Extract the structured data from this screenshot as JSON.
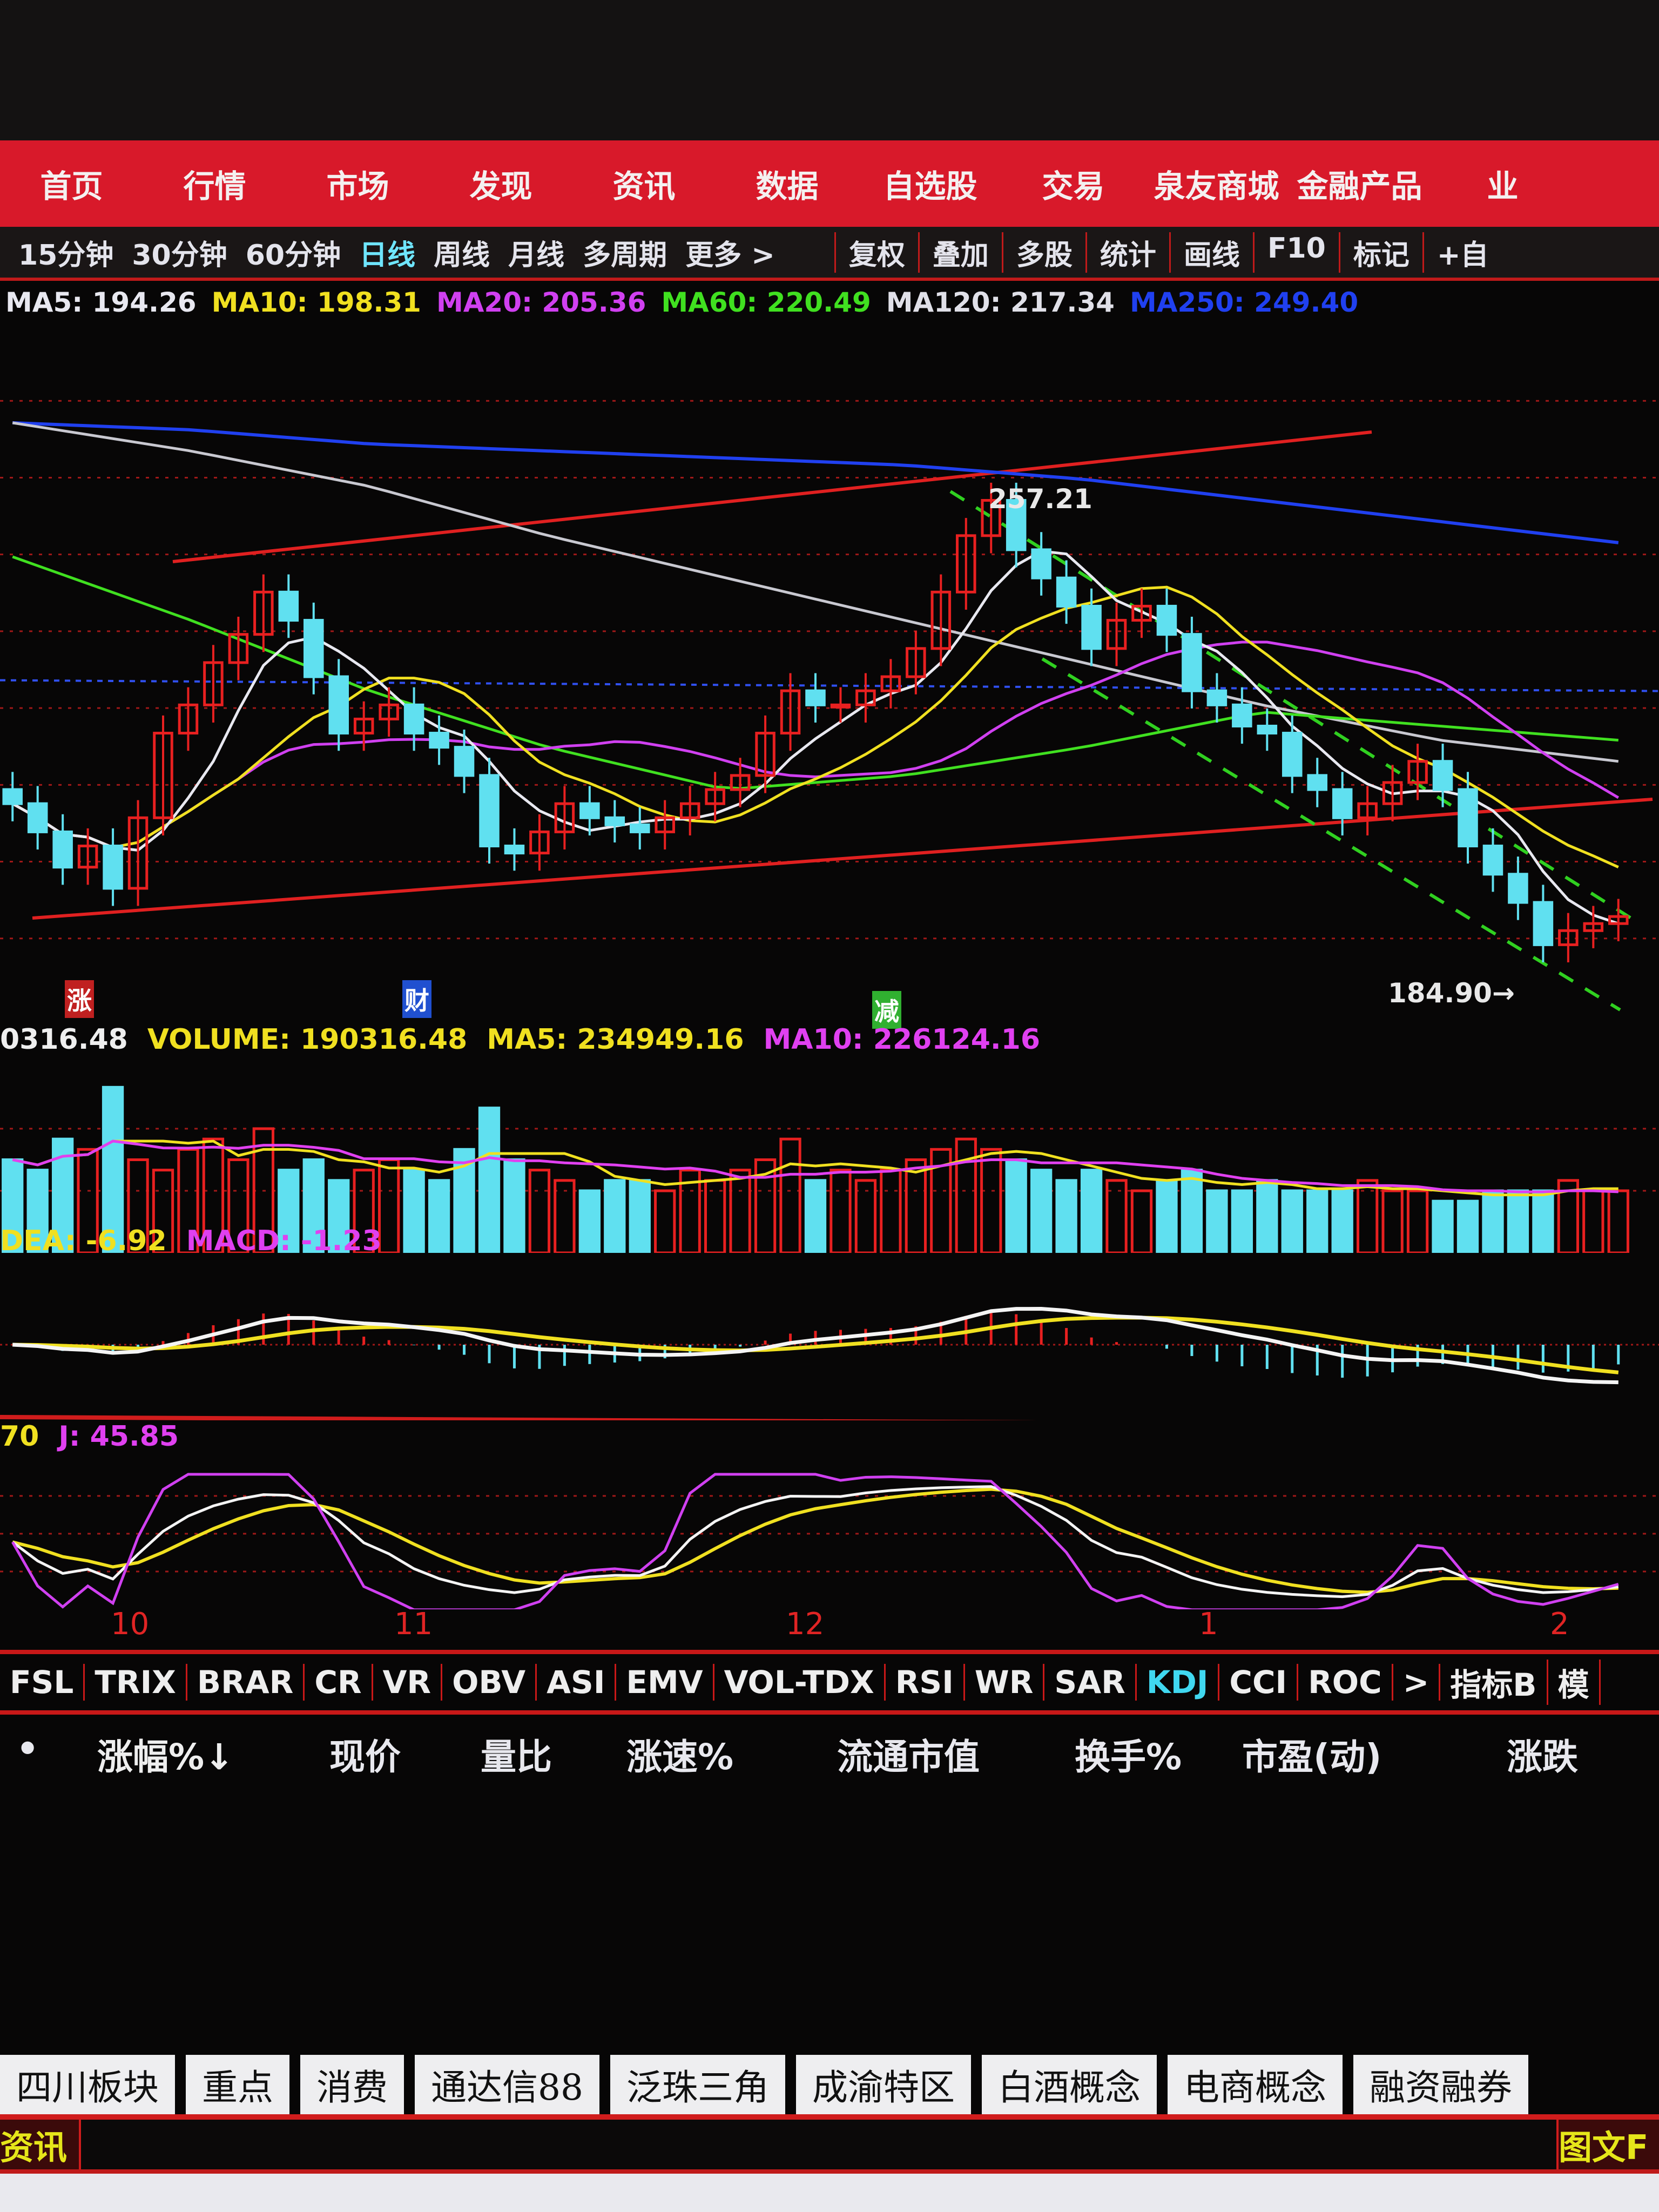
{
  "nav": {
    "items": [
      "首页",
      "行情",
      "市场",
      "发现",
      "资讯",
      "数据",
      "自选股",
      "交易",
      "泉友商城",
      "金融产品",
      "业"
    ]
  },
  "periods": {
    "items": [
      "15分钟",
      "30分钟",
      "60分钟",
      "日线",
      "周线",
      "月线",
      "多周期",
      "更多 >"
    ],
    "active": "日线"
  },
  "tools": {
    "items": [
      "复权",
      "叠加",
      "多股",
      "统计",
      "画线",
      "F10",
      "标记",
      "+自"
    ]
  },
  "ma_legend": [
    {
      "label": "MA5: 194.26",
      "color": "#e8e8f0"
    },
    {
      "label": "MA10: 198.31",
      "color": "#f0e020"
    },
    {
      "label": "MA20: 205.36",
      "color": "#d040f0"
    },
    {
      "label": "MA60: 220.49",
      "color": "#40e020"
    },
    {
      "label": "MA120: 217.34",
      "color": "#e0e0e8"
    },
    {
      "label": "MA250: 249.40",
      "color": "#2040f0"
    }
  ],
  "annotations": {
    "high": "257.21",
    "low": "184.90→"
  },
  "markers": [
    {
      "label": "涨",
      "color": "#c02020"
    },
    {
      "label": "财",
      "color": "#2050d0"
    },
    {
      "label": "减",
      "color": "#30b030"
    }
  ],
  "volume_legend": {
    "value": "0316.48",
    "volume": "VOLUME: 190316.48",
    "ma5": "MA5: 234949.16",
    "ma10": "MA10: 226124.16"
  },
  "macd_legend": {
    "dea": "DEA: -6.92",
    "macd": "MACD: -1.23"
  },
  "kdj_legend": {
    "prefix": "70",
    "j": "J: 45.85"
  },
  "date_axis": [
    "10",
    "11",
    "12",
    "1",
    "2"
  ],
  "indicator_tabs": {
    "items": [
      "FSL",
      "TRIX",
      "BRAR",
      "CR",
      "VR",
      "OBV",
      "ASI",
      "EMV",
      "VOL-TDX",
      "RSI",
      "WR",
      "SAR",
      "KDJ",
      "CCI",
      "ROC",
      ">",
      "指标B",
      "模"
    ],
    "active": "KDJ"
  },
  "column_headers": [
    "•",
    "涨幅%↓",
    "现价",
    "量比",
    "涨速%",
    "流通市值",
    "换手%",
    "市盈(动)",
    "涨跌"
  ],
  "sheet_tabs": [
    "四川板块",
    "重点",
    "消费",
    "通达信88",
    "泛珠三角",
    "成渝特区",
    "白酒概念",
    "电商概念",
    "融资融券"
  ],
  "bottom_bar": {
    "left": "资讯",
    "right": "图文F"
  },
  "colors": {
    "up": "#e82020",
    "down": "#60e0f0",
    "accent": "#d8192a"
  },
  "chart_data": {
    "type": "candlestick",
    "price_range": [
      182,
      280
    ],
    "closes": [
      212,
      208,
      203,
      206,
      200,
      210,
      222,
      226,
      232,
      236,
      242,
      238,
      230,
      222,
      224,
      226,
      222,
      220,
      216,
      206,
      205,
      208,
      212,
      210,
      209,
      208,
      210,
      212,
      214,
      216,
      222,
      228,
      226,
      226,
      228,
      230,
      234,
      242,
      250,
      255,
      248,
      244,
      240,
      234,
      238,
      240,
      236,
      228,
      226,
      223,
      222,
      216,
      214,
      210,
      212,
      215,
      218,
      214,
      206,
      202,
      198,
      192,
      194,
      195,
      196
    ],
    "ma60": [
      247,
      238,
      228,
      220,
      214,
      216,
      220,
      225,
      223,
      221
    ],
    "ma120": [
      266,
      262,
      257,
      250,
      244,
      238,
      232,
      226,
      221,
      218
    ],
    "ma250": [
      266,
      265,
      263,
      262,
      261,
      260,
      258,
      255,
      252,
      249
    ],
    "volume": [
      9,
      8,
      11,
      10,
      16,
      9,
      8,
      10,
      11,
      9,
      12,
      8,
      9,
      7,
      8,
      9,
      8,
      7,
      10,
      14,
      9,
      8,
      7,
      6,
      7,
      7,
      6,
      8,
      7,
      8,
      9,
      11,
      7,
      8,
      7,
      8,
      9,
      10,
      11,
      10,
      9,
      8,
      7,
      8,
      7,
      6,
      7,
      8,
      6,
      6,
      7,
      6,
      6,
      6,
      7,
      6,
      6,
      5,
      5,
      6,
      6,
      6,
      7,
      6,
      6
    ],
    "high_label": 257.21,
    "low_label": 184.9
  }
}
